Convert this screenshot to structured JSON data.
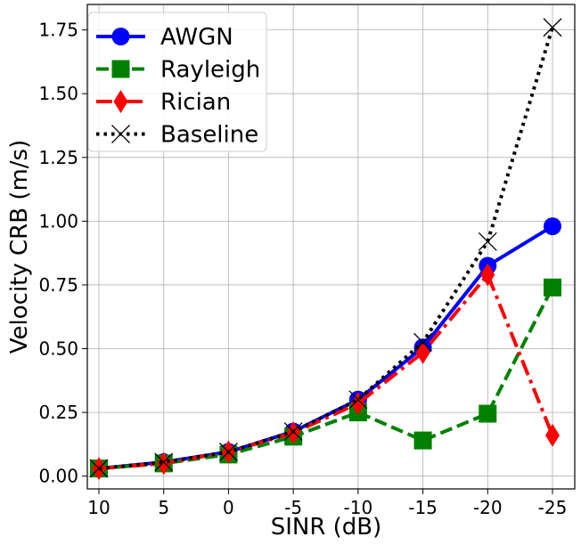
{
  "chart_data": {
    "type": "line",
    "title": "",
    "xlabel": "SINR (dB)",
    "ylabel": "Velocity CRB (m/s)",
    "categories": [
      "10",
      "5",
      "0",
      "-5",
      "-10",
      "-15",
      "-20",
      "-25"
    ],
    "ylim": [
      -0.05,
      1.85
    ],
    "yticks": [
      0.0,
      0.25,
      0.5,
      0.75,
      1.0,
      1.25,
      1.5,
      1.75
    ],
    "ytick_labels": [
      "0.00",
      "0.25",
      "0.50",
      "0.75",
      "1.00",
      "1.25",
      "1.50",
      "1.75"
    ],
    "grid": true,
    "legend_position": "top-left",
    "series": [
      {
        "name": "AWGN",
        "color": "#0000ff",
        "linestyle": "solid",
        "marker": "circle",
        "values": [
          0.03,
          0.055,
          0.095,
          0.175,
          0.3,
          0.505,
          0.825,
          0.98
        ]
      },
      {
        "name": "Rayleigh",
        "color": "#008000",
        "linestyle": "dashed",
        "marker": "square",
        "values": [
          0.03,
          0.05,
          0.085,
          0.155,
          0.25,
          0.14,
          0.245,
          0.74
        ]
      },
      {
        "name": "Rician",
        "color": "#ff0000",
        "linestyle": "dashdot",
        "marker": "diamond",
        "values": [
          0.03,
          0.05,
          0.095,
          0.17,
          0.285,
          0.485,
          0.79,
          0.16
        ]
      },
      {
        "name": "Baseline",
        "color": "#000000",
        "linestyle": "dotted",
        "marker": "x",
        "values": [
          0.03,
          0.055,
          0.095,
          0.175,
          0.3,
          0.525,
          0.92,
          1.76
        ]
      }
    ]
  }
}
